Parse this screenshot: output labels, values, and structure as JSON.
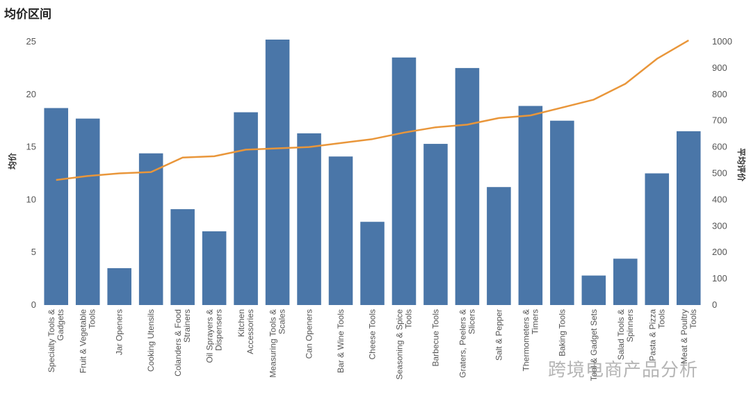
{
  "chart_data": {
    "type": "bar",
    "title": "均价区间",
    "ylabel": "均价",
    "y2label": "平均评价",
    "ylim": [
      0,
      25
    ],
    "y2lim": [
      0,
      1000
    ],
    "yticks": [
      0,
      5,
      10,
      15,
      20,
      25
    ],
    "y2ticks": [
      0,
      100,
      200,
      300,
      400,
      500,
      600,
      700,
      800,
      900,
      1000
    ],
    "grid": false,
    "categories": [
      "Specialty Tools & Gadgets",
      "Fruit & Vegetable Tools",
      "Jar Openers",
      "Cooking Utensils",
      "Colanders & Food Strainers",
      "Oil Sprayers & Dispensers",
      "Kitchen Accessories",
      "Measuring Tools & Scales",
      "Can Openers",
      "Bar & Wine Tools",
      "Cheese Tools",
      "Seasoning & Spice Tools",
      "Barbecue Tools",
      "Graters, Peelers & Slicers",
      "Salt & Pepper",
      "Thermometers & Timers",
      "Baking Tools",
      "Tool & Gadget Sets",
      "Salad Tools & Spinners",
      "Pasta & Pizza Tools",
      "Meat & Poultry Tools"
    ],
    "series": [
      {
        "kind": "bar",
        "axis": "left",
        "color": "#4a76a8",
        "values": [
          18.7,
          17.7,
          3.5,
          14.4,
          9.1,
          7.0,
          18.3,
          25.2,
          16.3,
          14.1,
          7.9,
          23.5,
          15.3,
          22.5,
          11.2,
          18.9,
          17.5,
          2.8,
          4.4,
          12.5,
          16.5
        ]
      },
      {
        "kind": "line",
        "axis": "right",
        "color": "#e9963a",
        "values": [
          475,
          490,
          500,
          505,
          560,
          565,
          590,
          595,
          600,
          615,
          630,
          655,
          675,
          685,
          710,
          720,
          750,
          780,
          840,
          935,
          1005
        ]
      }
    ]
  },
  "watermark": "跨境电商产品分析"
}
